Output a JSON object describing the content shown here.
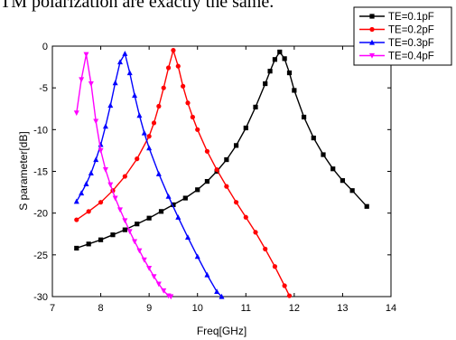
{
  "top_text": "TM polarization are exactly the same.",
  "chart_data": {
    "type": "line",
    "title": "",
    "xlabel": "Freq[GHz]",
    "ylabel": "S parameter[dB]",
    "xlim": [
      7,
      14
    ],
    "ylim": [
      -30,
      0
    ],
    "x_ticks": [
      7,
      8,
      9,
      10,
      11,
      12,
      13,
      14
    ],
    "y_ticks": [
      0,
      -5,
      -10,
      -15,
      -20,
      -25,
      -30
    ],
    "grid": false,
    "legend_position": "top-right",
    "series": [
      {
        "name": "TE=0.1pF",
        "color": "#000000",
        "marker": "square",
        "x": [
          7.5,
          7.75,
          8.0,
          8.25,
          8.5,
          8.75,
          9.0,
          9.25,
          9.5,
          9.75,
          10.0,
          10.2,
          10.4,
          10.6,
          10.8,
          11.0,
          11.2,
          11.4,
          11.5,
          11.6,
          11.7,
          11.8,
          11.9,
          12.0,
          12.2,
          12.4,
          12.6,
          12.8,
          13.0,
          13.2,
          13.5
        ],
        "y": [
          -24.2,
          -23.7,
          -23.2,
          -22.6,
          -22.0,
          -21.3,
          -20.6,
          -19.8,
          -19.0,
          -18.2,
          -17.2,
          -16.2,
          -15.0,
          -13.6,
          -11.9,
          -9.8,
          -7.3,
          -4.5,
          -3.0,
          -1.6,
          -0.7,
          -1.5,
          -3.2,
          -5.3,
          -8.5,
          -11.0,
          -13.0,
          -14.7,
          -16.1,
          -17.3,
          -19.2
        ]
      },
      {
        "name": "TE=0.2pF",
        "color": "#ff0000",
        "marker": "circle",
        "x": [
          7.5,
          7.75,
          8.0,
          8.25,
          8.5,
          8.75,
          9.0,
          9.1,
          9.2,
          9.3,
          9.4,
          9.5,
          9.6,
          9.7,
          9.8,
          9.9,
          10.0,
          10.2,
          10.4,
          10.6,
          10.8,
          11.0,
          11.2,
          11.4,
          11.6,
          11.8,
          11.9
        ],
        "y": [
          -20.8,
          -19.8,
          -18.7,
          -17.3,
          -15.6,
          -13.5,
          -10.8,
          -9.2,
          -7.2,
          -5.0,
          -2.6,
          -0.5,
          -2.4,
          -4.8,
          -6.8,
          -8.5,
          -10.0,
          -12.6,
          -14.8,
          -16.8,
          -18.7,
          -20.5,
          -22.3,
          -24.3,
          -26.4,
          -28.7,
          -29.9
        ]
      },
      {
        "name": "TE=0.3pF",
        "color": "#0000ff",
        "marker": "triangle",
        "x": [
          7.5,
          7.6,
          7.7,
          7.8,
          7.9,
          8.0,
          8.1,
          8.2,
          8.3,
          8.4,
          8.5,
          8.6,
          8.7,
          8.8,
          8.9,
          9.0,
          9.2,
          9.4,
          9.6,
          9.8,
          10.0,
          10.2,
          10.4,
          10.5
        ],
        "y": [
          -18.6,
          -17.6,
          -16.5,
          -15.2,
          -13.6,
          -11.8,
          -9.6,
          -7.1,
          -4.4,
          -1.9,
          -0.9,
          -3.2,
          -5.9,
          -8.3,
          -10.4,
          -12.2,
          -15.3,
          -18.0,
          -20.5,
          -22.9,
          -25.2,
          -27.4,
          -29.4,
          -30.0
        ]
      },
      {
        "name": "TE=0.4pF",
        "color": "#ff00ff",
        "marker": "triangle-down",
        "x": [
          7.5,
          7.6,
          7.7,
          7.8,
          7.9,
          8.0,
          8.1,
          8.2,
          8.3,
          8.4,
          8.5,
          8.6,
          8.7,
          8.8,
          8.9,
          9.0,
          9.1,
          9.2,
          9.3,
          9.4,
          9.45
        ],
        "y": [
          -8.0,
          -4.0,
          -1.0,
          -4.5,
          -9.0,
          -12.5,
          -14.8,
          -16.6,
          -18.2,
          -19.6,
          -20.9,
          -22.2,
          -23.4,
          -24.5,
          -25.6,
          -26.6,
          -27.6,
          -28.5,
          -29.3,
          -29.9,
          -30.0
        ]
      }
    ]
  }
}
